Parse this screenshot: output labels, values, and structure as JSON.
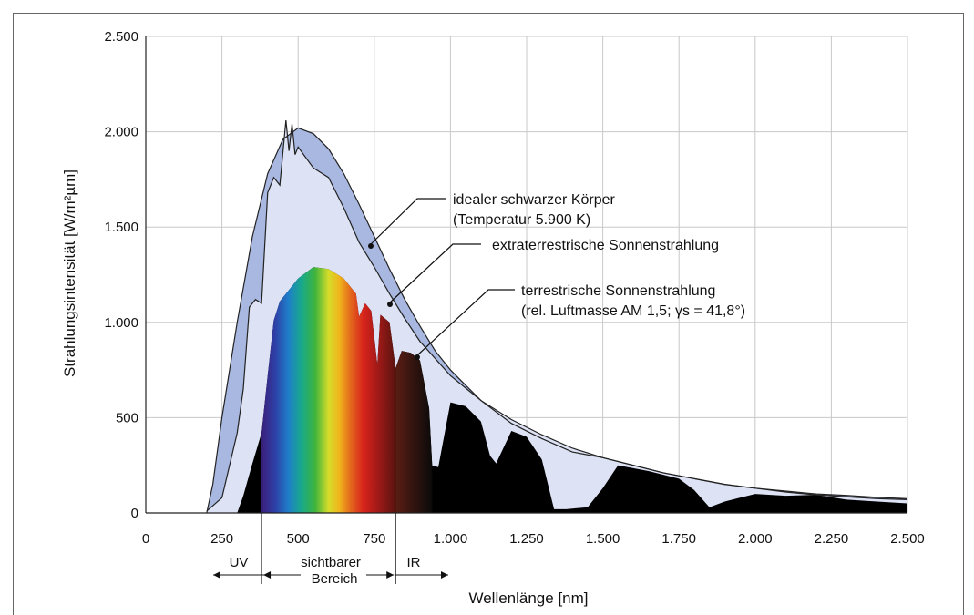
{
  "chart_data": {
    "type": "area",
    "xlabel": "Wellenlänge [nm]",
    "ylabel": "Strahlungsintensität [W/m²µm]",
    "xlim": [
      0,
      2500
    ],
    "ylim": [
      0,
      2500
    ],
    "x_ticks": [
      0,
      250,
      500,
      750,
      1000,
      1250,
      1500,
      1750,
      2000,
      2250,
      2500
    ],
    "x_tick_labels": [
      "0",
      "250",
      "500",
      "750",
      "1.000",
      "1.250",
      "1.500",
      "1.750",
      "2.000",
      "2.250",
      "2.500"
    ],
    "y_ticks": [
      0,
      500,
      1000,
      1500,
      2000,
      2500
    ],
    "y_tick_labels": [
      "0",
      "500",
      "1.000",
      "1.500",
      "2.000",
      "2.500"
    ],
    "grid": true,
    "series": [
      {
        "name": "idealer schwarzer Körper (Temperatur 5.900 K)",
        "x": [
          200,
          220,
          250,
          300,
          350,
          400,
          450,
          500,
          550,
          600,
          650,
          700,
          750,
          800,
          850,
          900,
          950,
          1000,
          1100,
          1200,
          1300,
          1400,
          1500,
          1600,
          1700,
          1800,
          1900,
          2000,
          2100,
          2200,
          2300,
          2400,
          2500
        ],
        "y": [
          0,
          150,
          500,
          1000,
          1450,
          1780,
          1960,
          2020,
          1990,
          1910,
          1780,
          1620,
          1450,
          1280,
          1120,
          980,
          850,
          750,
          590,
          470,
          390,
          320,
          290,
          250,
          210,
          180,
          150,
          130,
          115,
          100,
          92,
          82,
          75
        ]
      },
      {
        "name": "extraterrestrische Sonnenstrahlung",
        "x": [
          200,
          250,
          300,
          320,
          340,
          360,
          380,
          400,
          420,
          440,
          460,
          470,
          480,
          490,
          500,
          550,
          600,
          650,
          700,
          750,
          800,
          850,
          900,
          1000,
          1100,
          1200,
          1300,
          1400,
          1500,
          1600,
          1700,
          1800,
          1900,
          2000,
          2100,
          2200,
          2300,
          2400,
          2500
        ],
        "y": [
          10,
          80,
          420,
          650,
          1080,
          1120,
          1100,
          1680,
          1760,
          1720,
          2060,
          1900,
          2040,
          1880,
          1920,
          1810,
          1760,
          1600,
          1420,
          1290,
          1150,
          1020,
          900,
          720,
          590,
          490,
          410,
          340,
          290,
          250,
          210,
          180,
          150,
          130,
          110,
          95,
          85,
          75,
          70
        ]
      },
      {
        "name": "terrestrische Sonnenstrahlung (rel. Luftmasse AM 1,5; γs = 41,8°)",
        "x": [
          300,
          320,
          350,
          380,
          400,
          420,
          440,
          460,
          500,
          550,
          600,
          650,
          690,
          700,
          720,
          740,
          760,
          770,
          800,
          820,
          840,
          870,
          900,
          930,
          940,
          960,
          1000,
          1050,
          1100,
          1130,
          1150,
          1200,
          1250,
          1300,
          1340,
          1380,
          1450,
          1500,
          1550,
          1650,
          1750,
          1800,
          1850,
          1900,
          1950,
          2000,
          2100,
          2200,
          2300,
          2400,
          2500
        ],
        "y": [
          0,
          90,
          260,
          420,
          720,
          1010,
          1110,
          1150,
          1230,
          1290,
          1280,
          1230,
          1150,
          1030,
          1100,
          1060,
          780,
          1040,
          1000,
          760,
          850,
          840,
          800,
          550,
          250,
          240,
          580,
          560,
          480,
          300,
          260,
          430,
          400,
          280,
          20,
          20,
          30,
          130,
          250,
          220,
          180,
          120,
          30,
          60,
          80,
          100,
          90,
          95,
          70,
          60,
          50
        ]
      }
    ],
    "annotations": [
      "idealer schwarzer Körper",
      "(Temperatur 5.900 K)",
      "extraterrestrische Sonnenstrahlung",
      "terrestrische Sonnenstrahlung",
      "(rel. Luftmasse AM 1,5; γs = 41,8°)"
    ],
    "bands": [
      {
        "label": "UV",
        "from": 0,
        "to": 380
      },
      {
        "label": "sichtbarer",
        "label2": "Bereich",
        "from": 380,
        "to": 820
      },
      {
        "label": "IR",
        "from": 820,
        "to": 1000
      }
    ]
  }
}
